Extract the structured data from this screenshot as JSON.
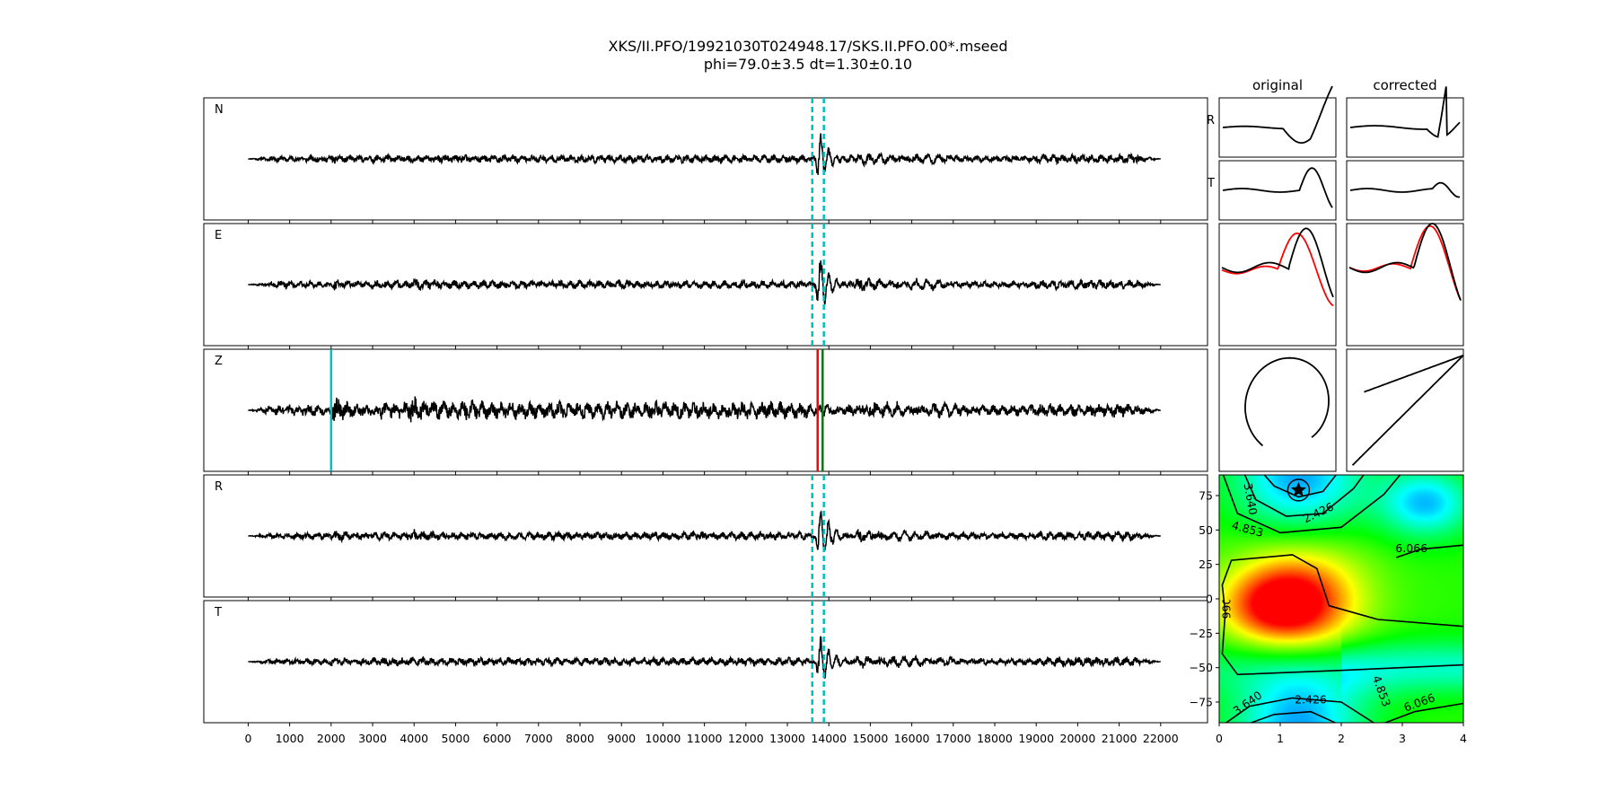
{
  "title": "XKS/II.PFO/19921030T024948.17/SKS.II.PFO.00*.mseed",
  "subtitle": "phi=79.0±3.5 dt=1.30±0.10",
  "chart_data": [
    {
      "type": "line",
      "panel": "waveforms",
      "channels": [
        "N",
        "E",
        "Z",
        "R",
        "T"
      ],
      "x_range": [
        -1070,
        23130
      ],
      "signal_x_range": [
        0,
        22000
      ],
      "x_ticks": [
        0,
        1000,
        2000,
        3000,
        4000,
        5000,
        6000,
        7000,
        8000,
        9000,
        10000,
        11000,
        12000,
        13000,
        14000,
        15000,
        16000,
        17000,
        18000,
        19000,
        20000,
        21000,
        22000
      ],
      "window_lines_dashed": [
        13600,
        13880
      ],
      "z_picks": [
        {
          "x": 2000,
          "color": "#00bfbf"
        },
        {
          "x": 13730,
          "color": "#ff0000"
        },
        {
          "x": 13850,
          "color": "#008000"
        }
      ],
      "colors": {
        "trace": "#000000",
        "window": "#00bfbf"
      }
    },
    {
      "type": "line",
      "panel": "particle",
      "column_titles": [
        "original",
        "corrected"
      ],
      "row_labels": [
        "R",
        "T"
      ],
      "colors": {
        "fast": "#ff0000",
        "slow": "#000000"
      }
    },
    {
      "type": "heatmap",
      "panel": "error-surface",
      "x_range": [
        0,
        4
      ],
      "y_range": [
        -90,
        90
      ],
      "x_ticks": [
        "0",
        "1",
        "2",
        "3",
        "4"
      ],
      "y_ticks": [
        "75",
        "50",
        "25",
        "0",
        "−25",
        "−50",
        "−75"
      ],
      "contour_labels": [
        "3.640",
        "2.426",
        "4.853",
        "6.066",
        "6.066",
        "3.640",
        "2.426",
        "4.853",
        "6.066"
      ],
      "best_fit": {
        "dt": 1.3,
        "phi": 79
      },
      "colormap": "gist_rainbow"
    }
  ]
}
